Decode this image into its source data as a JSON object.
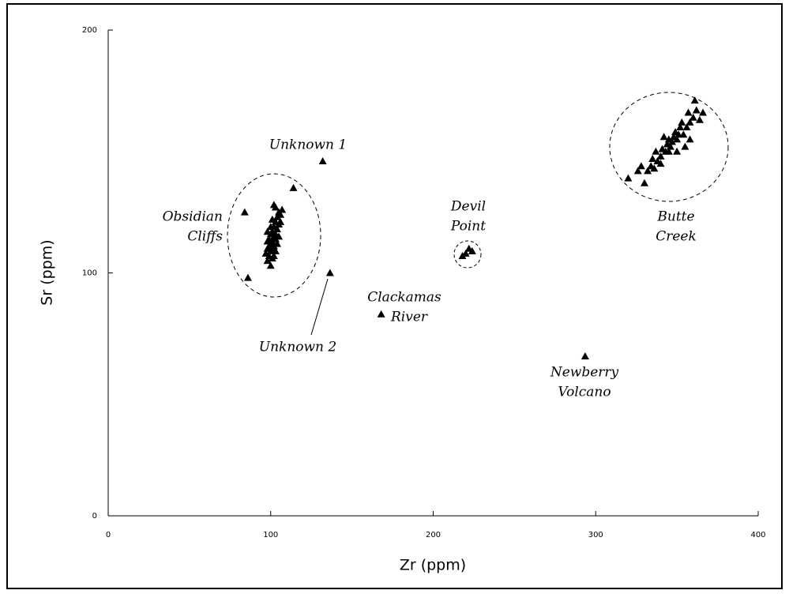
{
  "chart_data": {
    "type": "scatter",
    "x_label": "Zr (ppm)",
    "y_label": "Sr (ppm)",
    "xlim": [
      0,
      400
    ],
    "ylim": [
      0,
      200
    ],
    "xticks": [
      0,
      100,
      200,
      300,
      400
    ],
    "yticks": [
      0,
      100,
      200
    ],
    "color": "#000000",
    "x": [
      100,
      98,
      101,
      99,
      102,
      97,
      100,
      103,
      98,
      101,
      99,
      102,
      104,
      100,
      98,
      101,
      103,
      99,
      102,
      105,
      100,
      98,
      103,
      101,
      104,
      102,
      100,
      105,
      103,
      106,
      101,
      104,
      106,
      105,
      107,
      103,
      102,
      84,
      86,
      114,
      132,
      136.5,
      168,
      218,
      220,
      222,
      224,
      293.5,
      320,
      326,
      328,
      330,
      332,
      334,
      336,
      338,
      340,
      337,
      341,
      343,
      344,
      346,
      345,
      347,
      348,
      350,
      349,
      351,
      352,
      354,
      353,
      356,
      358,
      360,
      357,
      362,
      364,
      366,
      361,
      355,
      340,
      335,
      342,
      358,
      345,
      350
    ],
    "values": [
      103,
      105,
      106,
      107,
      107,
      108,
      109,
      109,
      110,
      110,
      111,
      111,
      112,
      112,
      113,
      113,
      114,
      114,
      115,
      115,
      116,
      117,
      116,
      117,
      118,
      119,
      119,
      120,
      121,
      121,
      122,
      123,
      124,
      125,
      126,
      127,
      128,
      125,
      98,
      135,
      146,
      100,
      83,
      107,
      108,
      110,
      109,
      65.7,
      139,
      142,
      144,
      137,
      142,
      144,
      143,
      146,
      148,
      150,
      151,
      150,
      153,
      152,
      155,
      154,
      156,
      155,
      158,
      157,
      160,
      157,
      162,
      160,
      162,
      164,
      166,
      167,
      163,
      166,
      171,
      152,
      145,
      147,
      156,
      155,
      150,
      150
    ],
    "annotations": [
      {
        "lines": [
          "Unknown 1"
        ]
      },
      {
        "lines": [
          "Obsidian",
          "Cliffs"
        ]
      },
      {
        "lines": [
          "Unknown 2"
        ]
      },
      {
        "lines": [
          "Clackamas",
          "River"
        ]
      },
      {
        "lines": [
          "Devil",
          "Point"
        ]
      },
      {
        "lines": [
          "Newberry",
          "Volcano"
        ]
      },
      {
        "lines": [
          "Butte",
          "Creek"
        ]
      }
    ]
  }
}
